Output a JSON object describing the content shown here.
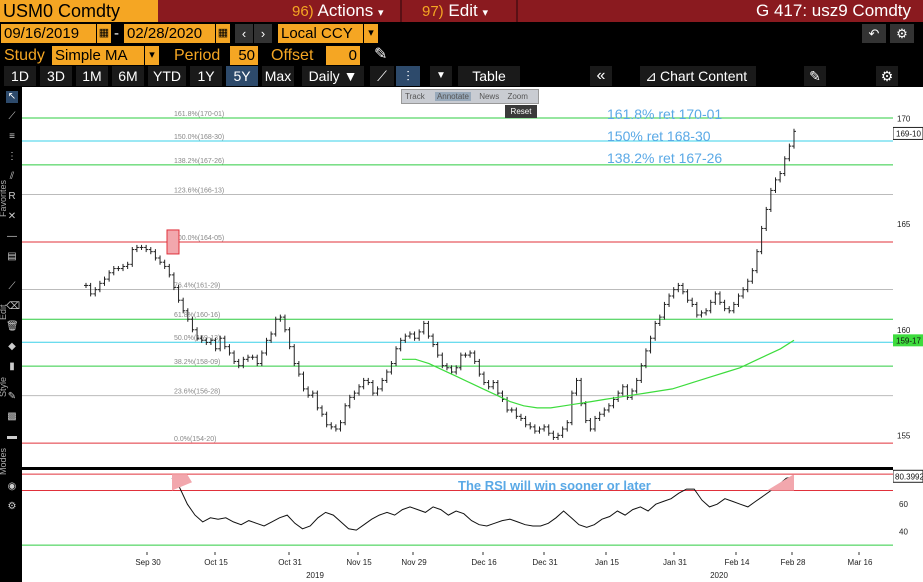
{
  "header": {
    "ticker": "USM0 Comdty",
    "actions": {
      "num": "96)",
      "label": "Actions",
      "arrow": "▾"
    },
    "edit": {
      "num": "97)",
      "label": "Edit",
      "arrow": "▾"
    },
    "title": "G 417: usz9 Comdty"
  },
  "daterow": {
    "start": "09/16/2019",
    "end": "02/28/2020",
    "sep": "-",
    "currency": "Local CCY",
    "back_icon": "undo-icon",
    "settings_icon": "gear-icon"
  },
  "studyrow": {
    "study_label": "Study",
    "study_value": "Simple MA",
    "period_label": "Period",
    "period_value": "50",
    "offset_label": "Offset",
    "offset_value": "0"
  },
  "toolbar": {
    "ranges": [
      "1D",
      "3D",
      "1M",
      "6M",
      "YTD",
      "1Y",
      "5Y",
      "Max"
    ],
    "selected_range": "5Y",
    "frequency": "Daily ▼",
    "table": "Table",
    "chart_content": "Chart Content"
  },
  "sidebar": {
    "favorites": "Favorites",
    "edit": "Edit",
    "style": "Style",
    "modes": "Modes"
  },
  "floating": {
    "track": "Track",
    "annotate": "Annotate",
    "news": "News",
    "zoom": "Zoom",
    "reset": "Reset"
  },
  "annotations": {
    "fib1618": "161.8% ret 170-01",
    "fib150": "150% ret 168-30",
    "fib1382": "138.2% ret 167-26",
    "rsi_note": "The RSI will win sooner or later"
  },
  "chart_data": {
    "type": "line",
    "price_axis": {
      "ticks": [
        "170",
        "165",
        "160",
        "155"
      ],
      "last_label": "169-10",
      "ma_label": "159-17"
    },
    "rsi_axis": {
      "ticks": [
        "60",
        "40"
      ],
      "last_label": "80.3992"
    },
    "x_ticks": [
      "Sep 30",
      "Oct 15",
      "Oct 31",
      "Nov 15",
      "Nov 29",
      "Dec 16",
      "Dec 31",
      "Jan 15",
      "Jan 31",
      "Feb 14",
      "Feb 28",
      "Mar 16"
    ],
    "year_labels": [
      "2019",
      "2020"
    ],
    "fib_levels": [
      {
        "label": "161.8%(170-01)",
        "value": 170.03,
        "color": "#2ecc40"
      },
      {
        "label": "150.0%(168-30)",
        "value": 168.94,
        "color": "#3ad0e8"
      },
      {
        "label": "138.2%(167-26)",
        "value": 167.81,
        "color": "#2ecc40"
      },
      {
        "label": "123.6%(166-13)",
        "value": 166.41,
        "color": "#bbbbbb"
      },
      {
        "label": "100.0%(164-05)",
        "value": 164.16,
        "color": "#e0303a"
      },
      {
        "label": "76.4%(161-29)",
        "value": 161.91,
        "color": "#bbbbbb"
      },
      {
        "label": "61.8%(160-16)",
        "value": 160.5,
        "color": "#2ecc40"
      },
      {
        "label": "50.0%(159-13)",
        "value": 159.41,
        "color": "#3ad0e8"
      },
      {
        "label": "38.2%(158-09)",
        "value": 158.28,
        "color": "#2ecc40"
      },
      {
        "label": "23.6%(156-28)",
        "value": 156.88,
        "color": "#bbbbbb"
      },
      {
        "label": "0.0%(154-20)",
        "value": 154.63,
        "color": "#e0303a"
      }
    ],
    "ohlc": [
      162.1,
      161.7,
      161.9,
      162.2,
      162.4,
      162.7,
      162.9,
      162.9,
      163.0,
      163.1,
      163.8,
      163.9,
      163.9,
      163.8,
      163.7,
      163.4,
      163.2,
      163.0,
      162.6,
      162.0,
      161.4,
      160.9,
      160.5,
      160.0,
      159.6,
      159.5,
      159.4,
      159.5,
      159.1,
      159.6,
      159.2,
      158.9,
      158.5,
      158.3,
      158.6,
      158.7,
      158.7,
      158.4,
      158.9,
      159.5,
      159.8,
      160.5,
      160.6,
      160.0,
      159.2,
      158.4,
      157.9,
      157.2,
      156.9,
      157.0,
      156.3,
      156.0,
      155.5,
      155.4,
      155.3,
      155.6,
      156.4,
      156.8,
      157.0,
      157.3,
      157.6,
      157.5,
      157.0,
      157.2,
      157.6,
      158.0,
      158.4,
      159.1,
      159.5,
      159.7,
      159.8,
      159.6,
      159.9,
      160.3,
      159.7,
      159.3,
      158.8,
      158.3,
      158.2,
      158.0,
      158.2,
      158.8,
      158.8,
      158.9,
      158.5,
      157.9,
      157.5,
      157.3,
      157.5,
      157.0,
      156.7,
      156.2,
      156.2,
      155.9,
      155.8,
      155.5,
      155.4,
      155.2,
      155.3,
      155.4,
      155.1,
      154.9,
      155.0,
      155.3,
      155.6,
      157.0,
      157.6,
      156.5,
      155.7,
      155.3,
      155.8,
      156.0,
      156.2,
      156.4,
      156.7,
      157.0,
      157.3,
      156.8,
      157.1,
      157.6,
      158.3,
      159.0,
      159.6,
      160.3,
      160.6,
      161.2,
      161.6,
      161.9,
      162.1,
      161.8,
      161.4,
      161.2,
      160.7,
      160.8,
      160.9,
      161.3,
      161.7,
      161.3,
      161.0,
      160.9,
      161.2,
      161.6,
      161.9,
      162.3,
      162.8,
      163.7,
      164.8,
      165.7,
      166.6,
      167.1,
      167.4,
      168.1,
      168.7,
      169.4
    ],
    "ma50": [
      158.6,
      158.6,
      158.4,
      158.1,
      157.8,
      157.5,
      157.2,
      156.9,
      156.6,
      156.4,
      156.3,
      156.3,
      156.4,
      156.5,
      156.6,
      156.7,
      156.8,
      156.9,
      157.0,
      157.1,
      157.2,
      157.4,
      157.6,
      157.8,
      158.0,
      158.2,
      158.5,
      158.8,
      159.1,
      159.5
    ],
    "rsi": [
      79,
      72,
      60,
      52,
      47,
      50,
      49,
      50,
      47,
      45,
      48,
      46,
      44,
      47,
      50,
      52,
      46,
      42,
      44,
      50,
      54,
      52,
      47,
      42,
      41,
      45,
      49,
      52,
      54,
      52,
      56,
      58,
      56,
      54,
      58,
      56,
      52,
      55,
      53,
      48,
      45,
      44,
      46,
      48,
      49,
      47,
      45,
      44,
      44,
      46,
      50,
      55,
      50,
      45,
      43,
      45,
      49,
      51,
      55,
      52,
      56,
      58,
      55,
      60,
      62,
      64,
      68,
      71,
      71,
      63,
      58,
      60,
      64,
      62,
      60,
      58,
      62,
      66,
      70,
      74,
      79,
      80
    ]
  }
}
